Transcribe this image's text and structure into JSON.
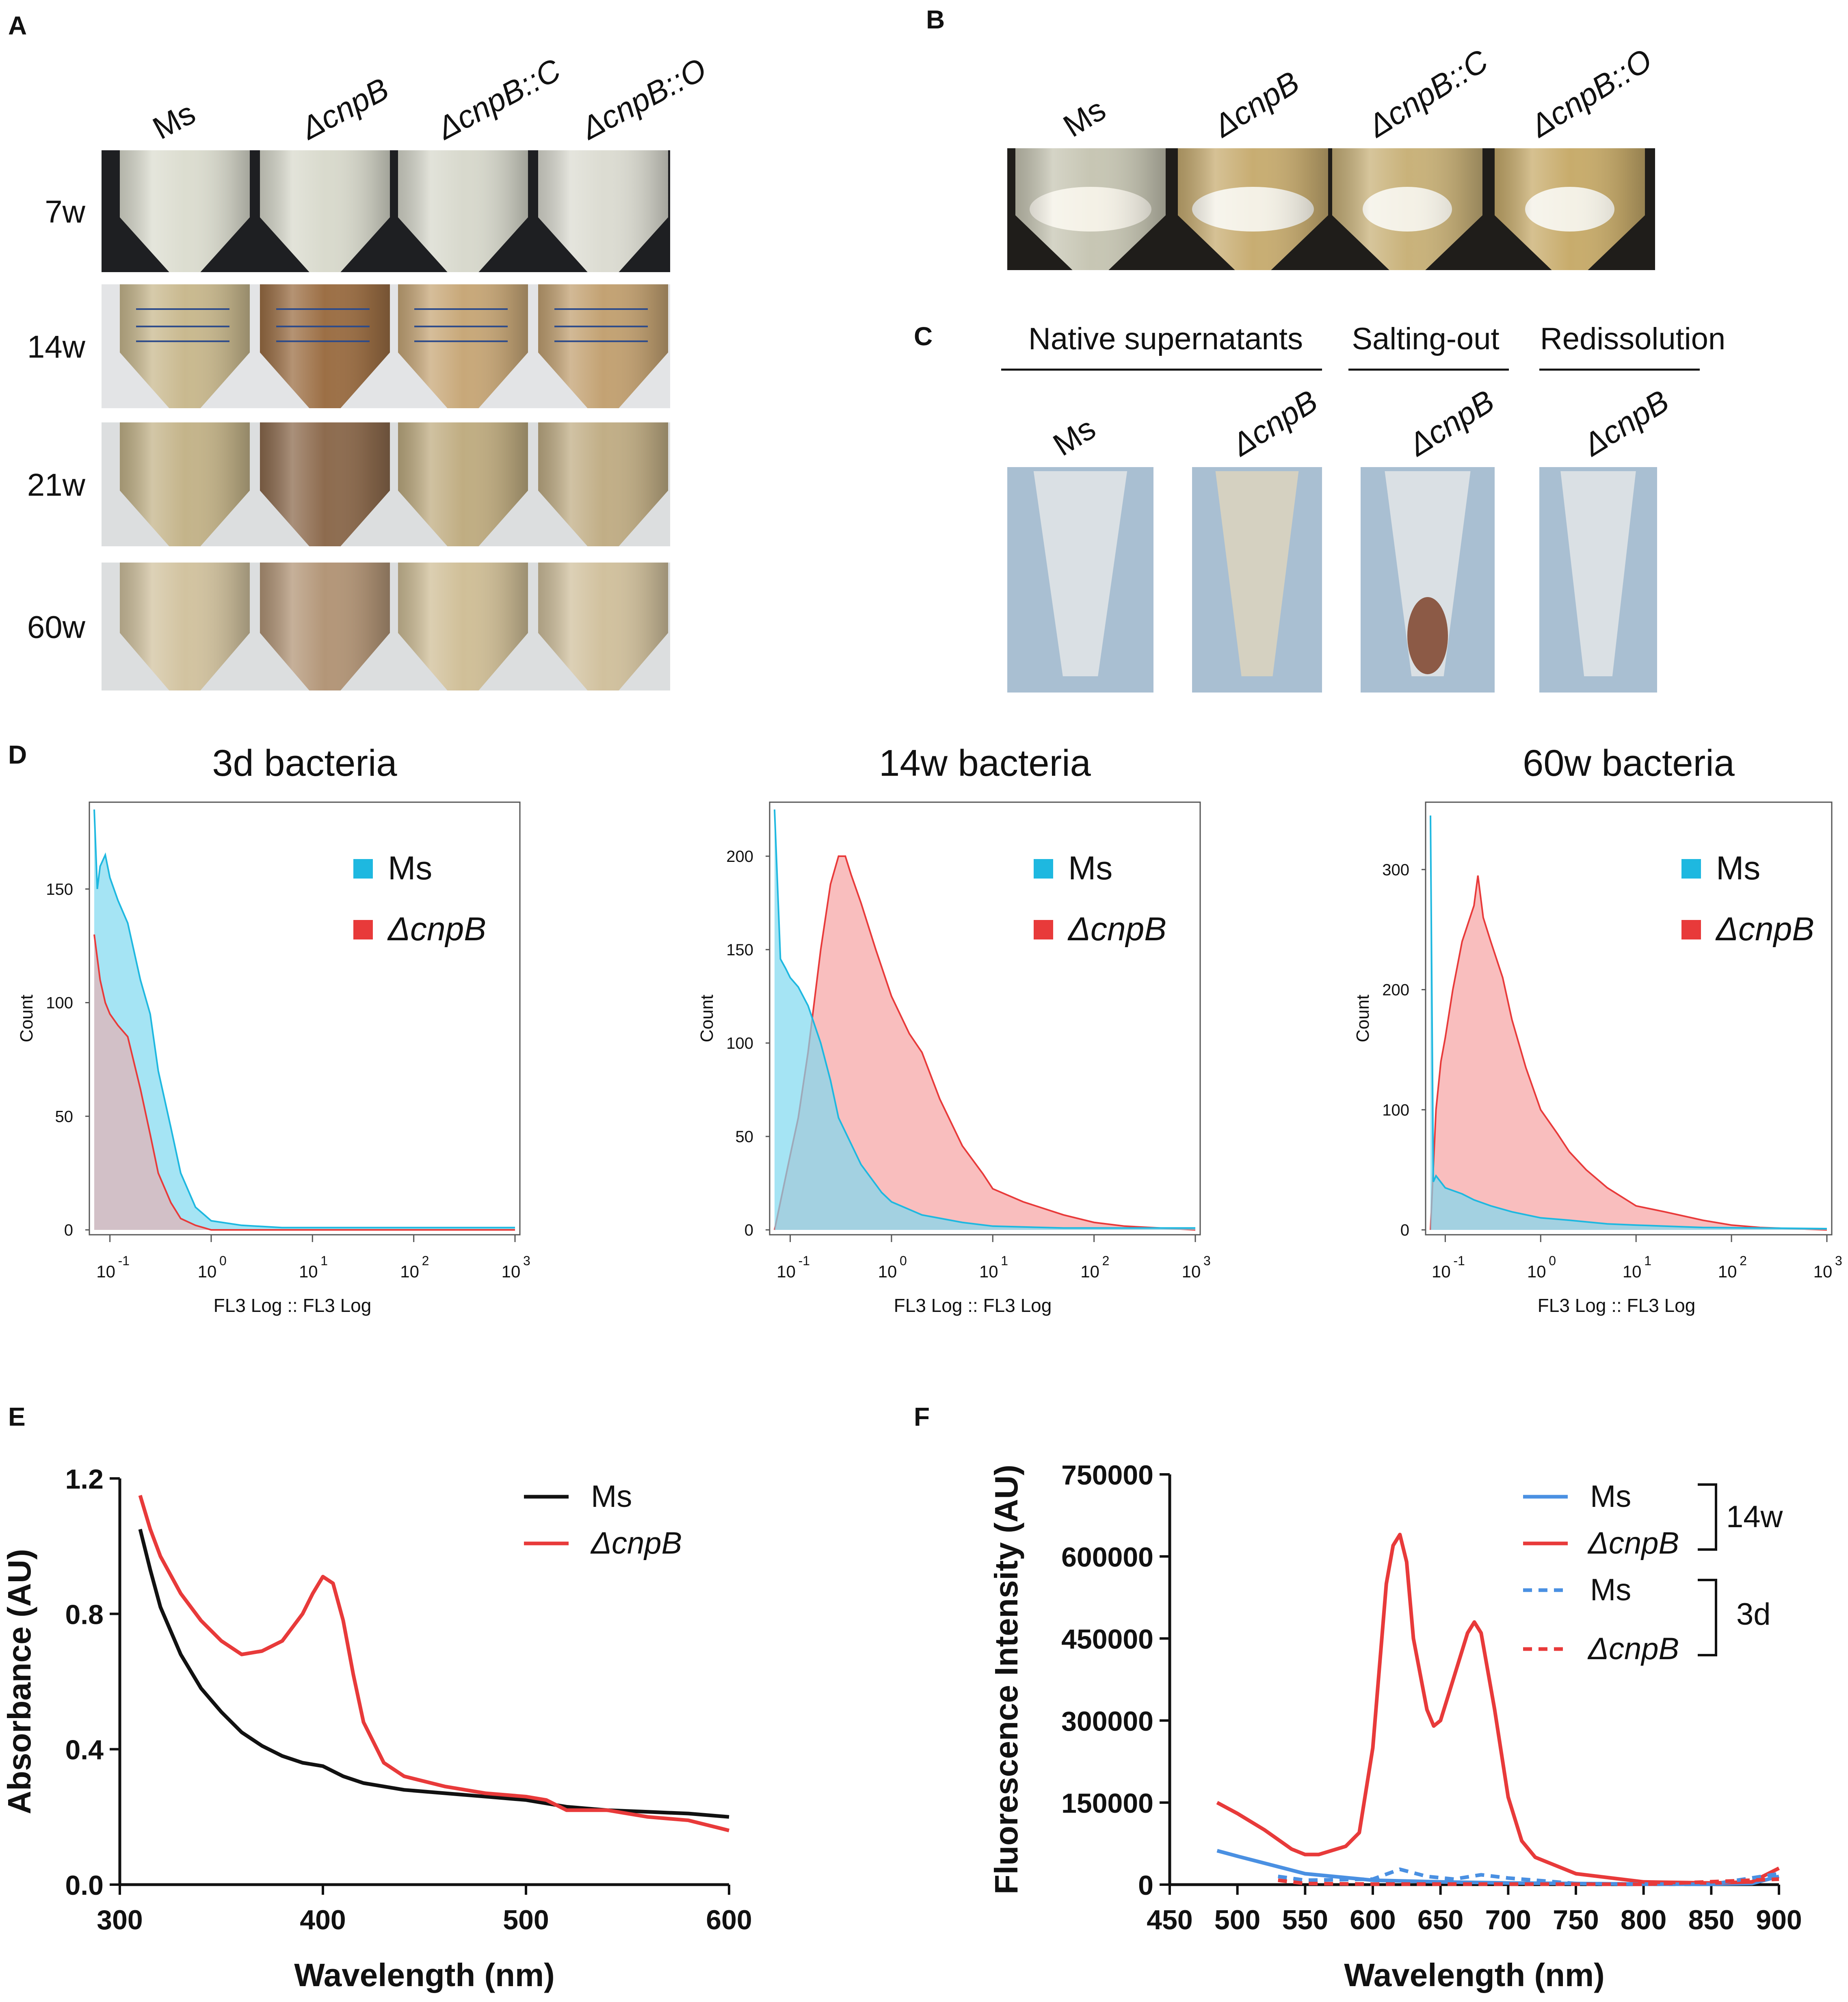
{
  "panels": {
    "A": {
      "letter": "A",
      "strains": [
        "Ms",
        "ΔcnpB",
        "ΔcnpB::C",
        "ΔcnpB::O"
      ],
      "rows": [
        "7w",
        "14w",
        "21w",
        "60w"
      ],
      "tube_colors": [
        [
          "#dcddd0",
          "#d9dacd",
          "#d8d9cd",
          "#dcdcd2"
        ],
        [
          "#c9b98f",
          "#9c6f45",
          "#c8a879",
          "#c3a273"
        ],
        [
          "#c4b48a",
          "#8d6b4e",
          "#c0ad82",
          "#c1ae86"
        ],
        [
          "#d2c3a0",
          "#b39678",
          "#d0bf98",
          "#d1c19e"
        ]
      ]
    },
    "B": {
      "letter": "B",
      "strains": [
        "Ms",
        "ΔcnpB",
        "ΔcnpB::C",
        "ΔcnpB::O"
      ],
      "tube_colors": [
        "#c7c6b4",
        "#c8ad72",
        "#c9b27a",
        "#c8ac6c"
      ]
    },
    "C": {
      "letter": "C",
      "groups": [
        "Native supernatants",
        "Salting-out",
        "Redissolution"
      ],
      "tubes": [
        "Ms",
        "ΔcnpB",
        "ΔcnpB",
        "ΔcnpB"
      ]
    },
    "D": {
      "letter": "D"
    },
    "E": {
      "letter": "E"
    },
    "F": {
      "letter": "F"
    }
  },
  "flow": {
    "xlabel": "FL3 Log :: FL3 Log",
    "ylabel": "Count",
    "xticks": [
      "10",
      "10",
      "10",
      "10",
      "10"
    ],
    "xtick_exps": [
      "-1",
      "0",
      "1",
      "2",
      "3"
    ],
    "legend": [
      "Ms",
      "ΔcnpB"
    ],
    "colors": {
      "Ms": "#1eb8e0",
      "cnpB": "#e83a3a"
    }
  },
  "chart_data": [
    {
      "type": "area",
      "title": "3d bacteria",
      "xlabel": "FL3 Log :: FL3 Log",
      "ylabel": "Count",
      "xscale": "log",
      "xlim": [
        0.07,
        1000
      ],
      "ylim": [
        0,
        185
      ],
      "yticks": [
        0,
        50,
        100,
        150
      ],
      "series": [
        {
          "name": "Ms",
          "x": [
            0.07,
            0.075,
            0.08,
            0.09,
            0.1,
            0.12,
            0.15,
            0.2,
            0.25,
            0.3,
            0.4,
            0.5,
            0.7,
            1,
            2,
            5,
            1000
          ],
          "values": [
            185,
            150,
            160,
            165,
            155,
            145,
            135,
            110,
            95,
            70,
            45,
            25,
            10,
            4,
            2,
            1,
            1
          ]
        },
        {
          "name": "ΔcnpB",
          "x": [
            0.07,
            0.08,
            0.09,
            0.1,
            0.12,
            0.15,
            0.2,
            0.25,
            0.3,
            0.4,
            0.5,
            0.7,
            1,
            5,
            1000
          ],
          "values": [
            130,
            110,
            100,
            95,
            90,
            85,
            62,
            42,
            25,
            12,
            5,
            2,
            0,
            0,
            0
          ]
        }
      ]
    },
    {
      "type": "area",
      "title": "14w bacteria",
      "xlabel": "FL3 Log :: FL3 Log",
      "ylabel": "Count",
      "xscale": "log",
      "xlim": [
        0.07,
        1000
      ],
      "ylim": [
        0,
        225
      ],
      "yticks": [
        0,
        50,
        100,
        150,
        200
      ],
      "series": [
        {
          "name": "Ms",
          "x": [
            0.07,
            0.08,
            0.09,
            0.1,
            0.12,
            0.15,
            0.2,
            0.25,
            0.3,
            0.5,
            0.8,
            1,
            2,
            5,
            10,
            50,
            1000
          ],
          "values": [
            225,
            145,
            140,
            135,
            130,
            120,
            100,
            80,
            60,
            35,
            20,
            15,
            8,
            4,
            2,
            1,
            1
          ]
        },
        {
          "name": "ΔcnpB",
          "x": [
            0.07,
            0.08,
            0.1,
            0.12,
            0.15,
            0.2,
            0.25,
            0.3,
            0.35,
            0.4,
            0.5,
            0.7,
            1,
            1.5,
            2,
            3,
            5,
            8,
            10,
            20,
            50,
            100,
            200,
            1000
          ],
          "values": [
            0,
            15,
            40,
            60,
            95,
            150,
            185,
            200,
            200,
            190,
            175,
            150,
            125,
            105,
            95,
            70,
            45,
            30,
            22,
            15,
            8,
            4,
            2,
            0
          ]
        }
      ]
    },
    {
      "type": "area",
      "title": "60w bacteria",
      "xlabel": "FL3 Log :: FL3 Log",
      "ylabel": "Count",
      "xscale": "log",
      "xlim": [
        0.07,
        1000
      ],
      "ylim": [
        0,
        350
      ],
      "yticks": [
        0,
        100,
        200,
        300
      ],
      "series": [
        {
          "name": "Ms",
          "x": [
            0.07,
            0.075,
            0.08,
            0.1,
            0.15,
            0.2,
            0.3,
            0.5,
            1,
            2,
            5,
            10,
            50,
            1000
          ],
          "values": [
            345,
            40,
            45,
            35,
            30,
            25,
            20,
            15,
            10,
            8,
            5,
            4,
            2,
            1
          ]
        },
        {
          "name": "ΔcnpB",
          "x": [
            0.07,
            0.08,
            0.09,
            0.1,
            0.12,
            0.15,
            0.2,
            0.22,
            0.25,
            0.3,
            0.4,
            0.5,
            0.7,
            1,
            1.5,
            2,
            3,
            5,
            10,
            20,
            50,
            100,
            200,
            1000
          ],
          "values": [
            0,
            100,
            140,
            160,
            200,
            240,
            270,
            295,
            260,
            240,
            210,
            175,
            135,
            100,
            80,
            65,
            50,
            35,
            20,
            15,
            8,
            4,
            2,
            0
          ]
        }
      ]
    },
    {
      "type": "line",
      "title": "",
      "xlabel": "Wavelength (nm)",
      "ylabel": "Absorbance (AU)",
      "xlim": [
        300,
        600
      ],
      "ylim": [
        0,
        1.2
      ],
      "xticks": [
        300,
        400,
        500,
        600
      ],
      "yticks": [
        0.0,
        0.4,
        0.8,
        1.2
      ],
      "ytick_labels": [
        "0.0",
        "0.4",
        "0.8",
        "1.2"
      ],
      "series": [
        {
          "name": "Ms",
          "color": "#111111",
          "x": [
            310,
            315,
            320,
            330,
            340,
            350,
            360,
            370,
            380,
            390,
            400,
            410,
            420,
            440,
            460,
            480,
            500,
            520,
            540,
            560,
            580,
            600
          ],
          "values": [
            1.05,
            0.93,
            0.82,
            0.68,
            0.58,
            0.51,
            0.45,
            0.41,
            0.38,
            0.36,
            0.35,
            0.32,
            0.3,
            0.28,
            0.27,
            0.26,
            0.25,
            0.23,
            0.22,
            0.215,
            0.21,
            0.2
          ]
        },
        {
          "name": "ΔcnpB",
          "color": "#e83a3a",
          "x": [
            310,
            315,
            320,
            330,
            340,
            350,
            360,
            370,
            380,
            390,
            395,
            400,
            405,
            410,
            415,
            420,
            430,
            440,
            460,
            480,
            500,
            510,
            520,
            540,
            560,
            580,
            600
          ],
          "values": [
            1.15,
            1.05,
            0.97,
            0.86,
            0.78,
            0.72,
            0.68,
            0.69,
            0.72,
            0.8,
            0.86,
            0.91,
            0.89,
            0.78,
            0.62,
            0.48,
            0.36,
            0.32,
            0.29,
            0.27,
            0.26,
            0.25,
            0.22,
            0.22,
            0.2,
            0.19,
            0.16
          ]
        }
      ]
    },
    {
      "type": "line",
      "title": "",
      "xlabel": "Wavelength (nm)",
      "ylabel": "Fluorescence Intensity (AU)",
      "xlim": [
        450,
        900
      ],
      "ylim": [
        0,
        750000
      ],
      "xticks": [
        450,
        500,
        550,
        600,
        650,
        700,
        750,
        800,
        850,
        900
      ],
      "yticks": [
        0,
        150000,
        300000,
        450000,
        600000,
        750000
      ],
      "groups": [
        "14w",
        "3d"
      ],
      "series": [
        {
          "name": "Ms",
          "group": "14w",
          "style": "solid",
          "color": "#4a90e2",
          "x": [
            485,
            500,
            550,
            600,
            650,
            700,
            750,
            800,
            850,
            880,
            900
          ],
          "values": [
            62000,
            52000,
            20000,
            8000,
            5000,
            3000,
            2000,
            1000,
            1000,
            2000,
            15000
          ]
        },
        {
          "name": "ΔcnpB",
          "group": "14w",
          "style": "solid",
          "color": "#e83a3a",
          "x": [
            485,
            500,
            520,
            540,
            550,
            560,
            580,
            590,
            600,
            610,
            615,
            620,
            625,
            630,
            640,
            645,
            650,
            660,
            670,
            675,
            680,
            690,
            700,
            710,
            720,
            750,
            800,
            850,
            880,
            900
          ],
          "values": [
            150000,
            130000,
            100000,
            65000,
            55000,
            55000,
            70000,
            95000,
            250000,
            550000,
            620000,
            640000,
            590000,
            450000,
            320000,
            290000,
            300000,
            380000,
            460000,
            480000,
            460000,
            320000,
            160000,
            80000,
            50000,
            20000,
            5000,
            3000,
            5000,
            30000
          ]
        },
        {
          "name": "Ms",
          "group": "3d",
          "style": "dashed",
          "color": "#4a90e2",
          "x": [
            530,
            550,
            600,
            620,
            640,
            660,
            680,
            700,
            750,
            800,
            850,
            900
          ],
          "values": [
            15000,
            8000,
            10000,
            28000,
            15000,
            10000,
            18000,
            12000,
            2000,
            1000,
            500,
            20000
          ]
        },
        {
          "name": "ΔcnpB",
          "group": "3d",
          "style": "dashed",
          "color": "#e83a3a",
          "x": [
            530,
            540,
            550,
            600,
            700,
            800,
            900
          ],
          "values": [
            8000,
            5000,
            2000,
            1000,
            1000,
            500,
            10000
          ]
        }
      ]
    }
  ]
}
